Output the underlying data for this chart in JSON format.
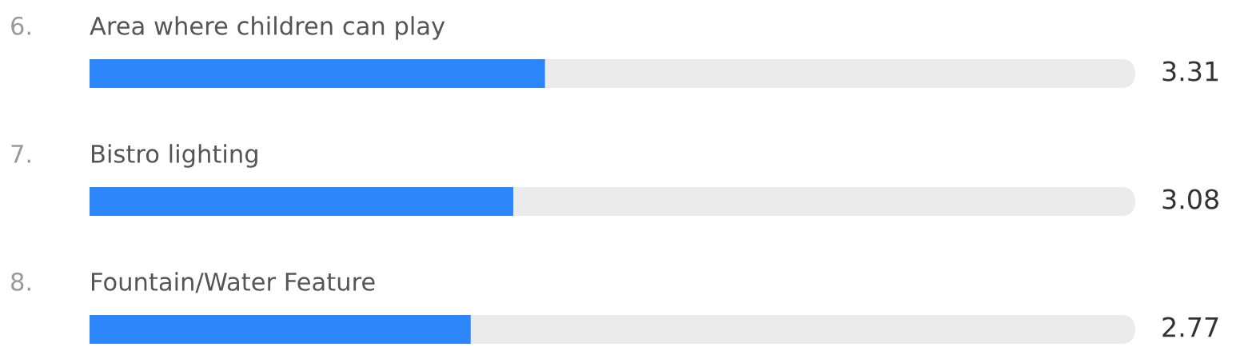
{
  "chart_data": {
    "type": "bar",
    "orientation": "horizontal",
    "categories": [
      "6. Area where children can play",
      "7. Bistro lighting",
      "8. Fountain/Water Feature"
    ],
    "values": [
      3.31,
      3.08,
      2.77
    ],
    "color": "#2d87fb",
    "xlim": [
      0,
      7.6
    ],
    "data_labels": true
  }
}
